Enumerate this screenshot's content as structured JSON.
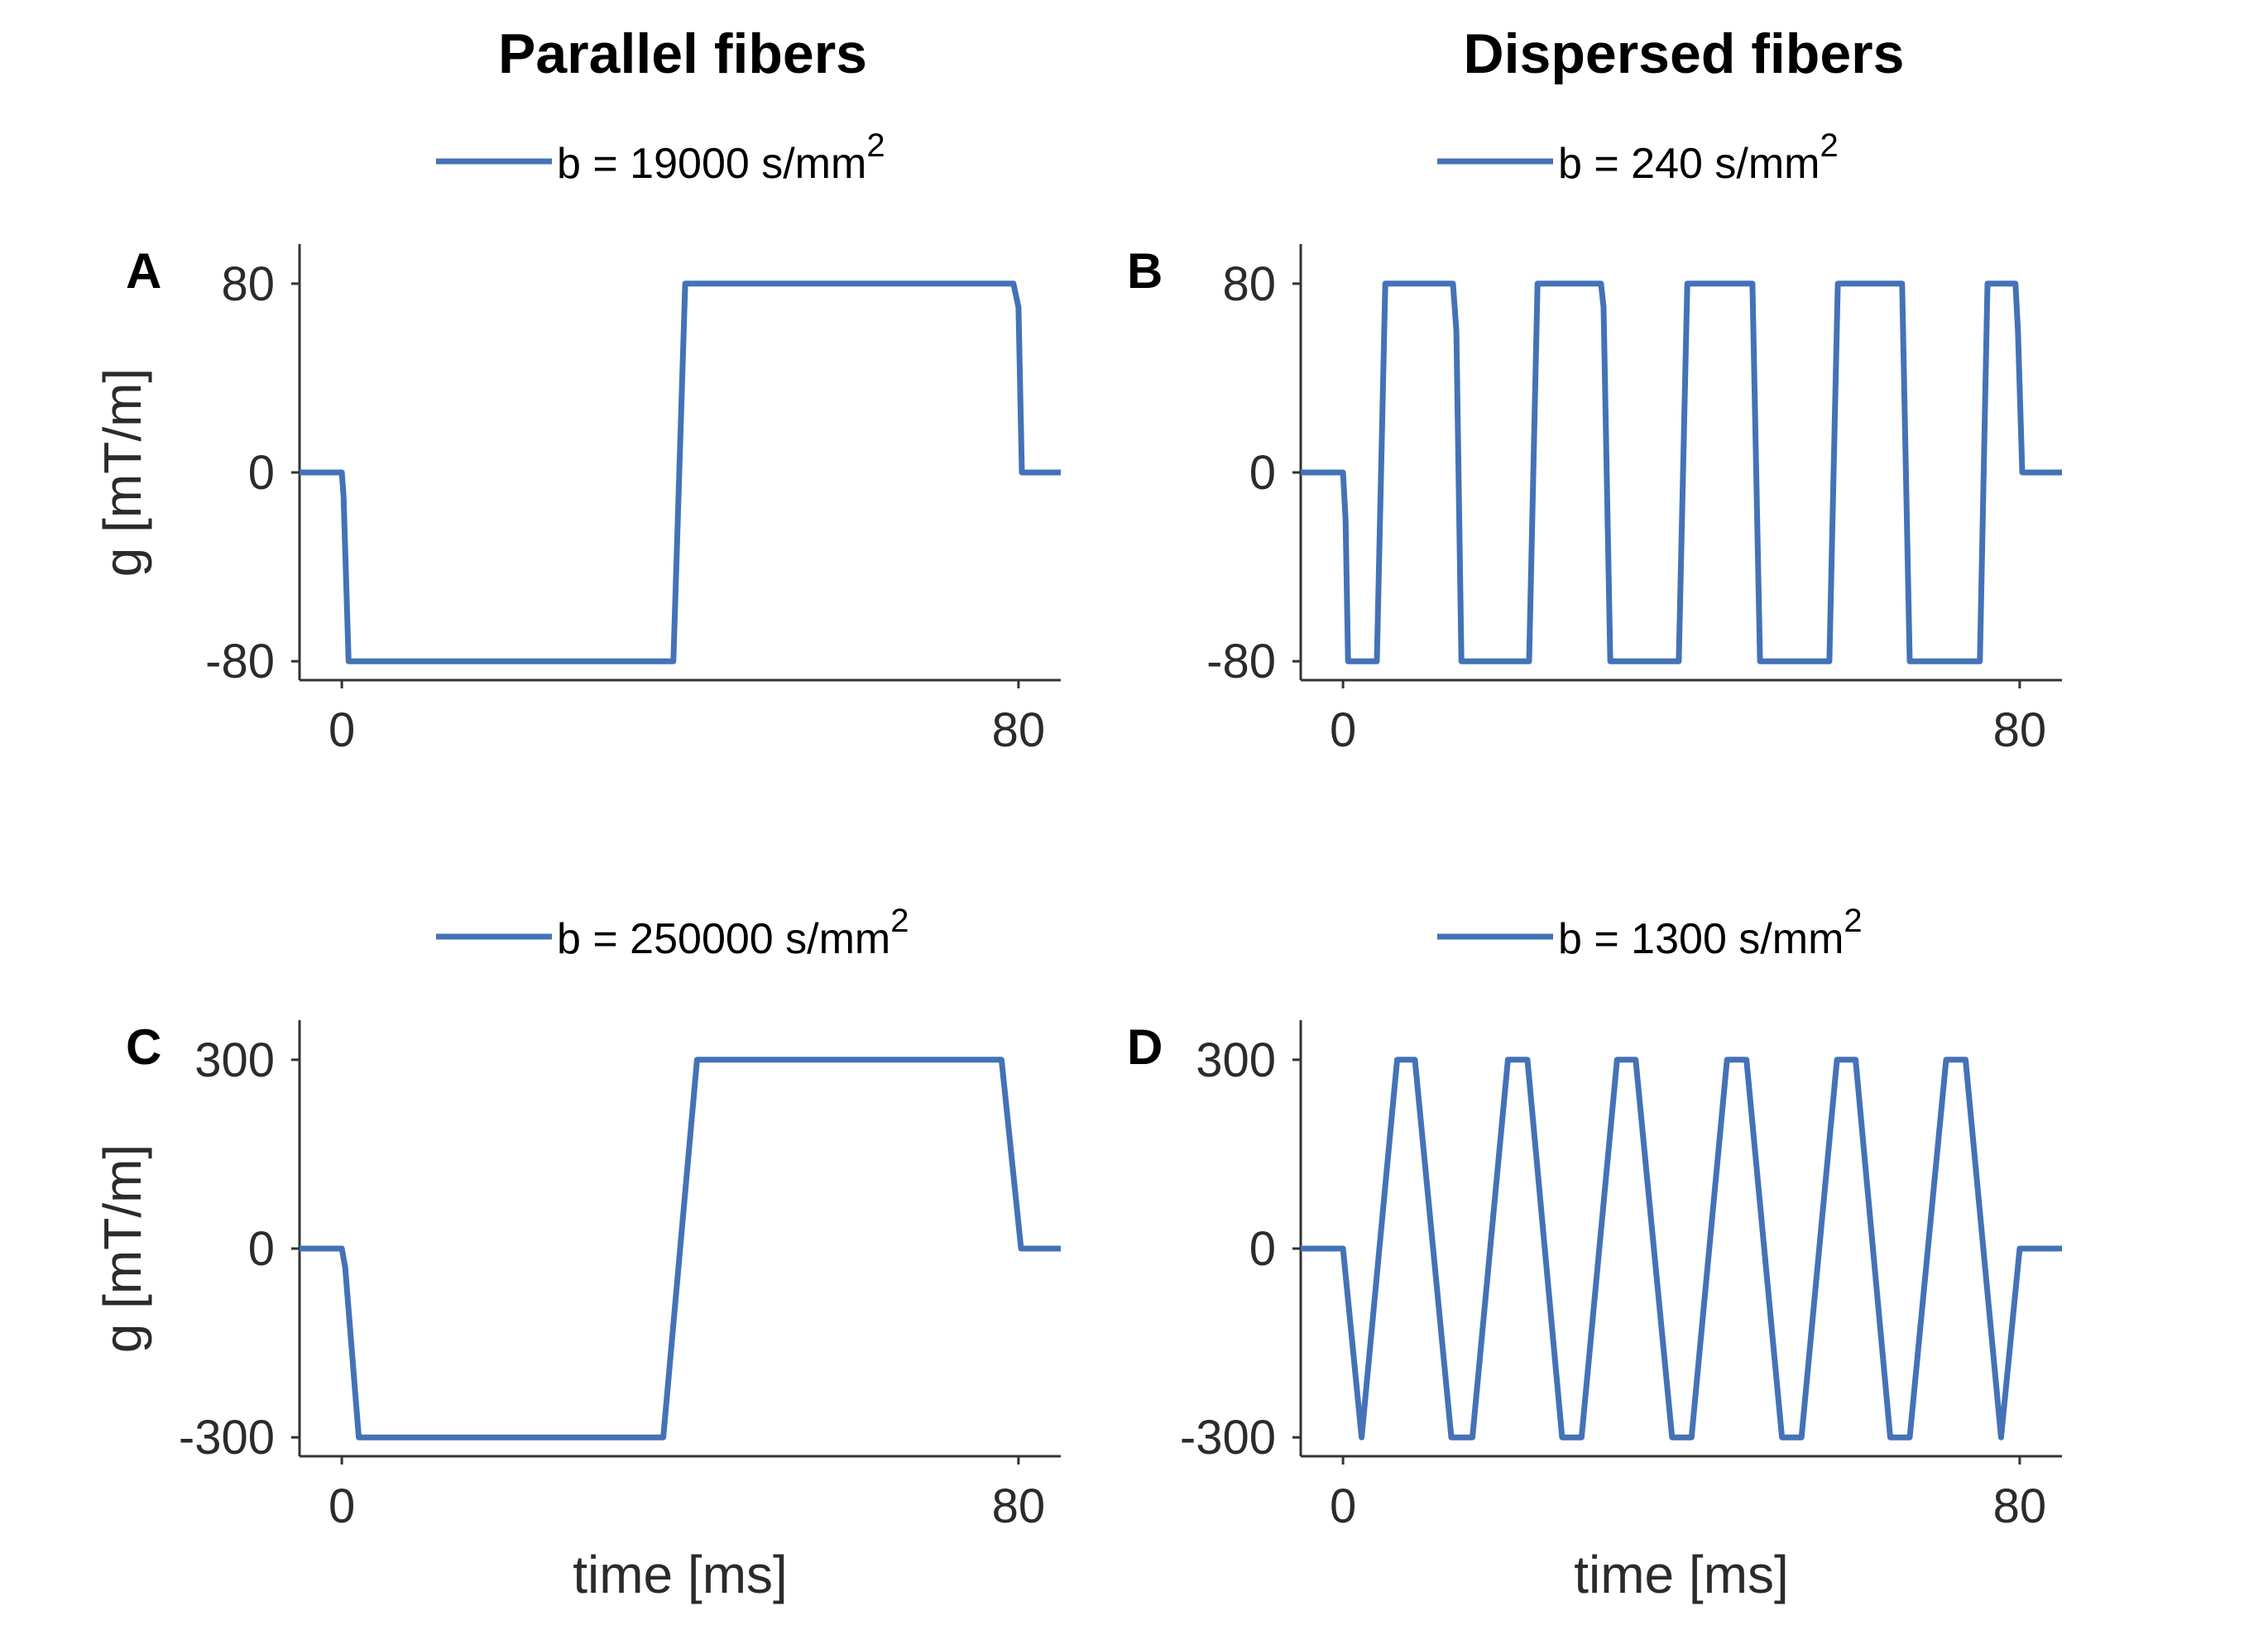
{
  "column_titles": [
    "Parallel fibers",
    "Dispersed fibers"
  ],
  "colors": {
    "trace": "#4472b8",
    "axis": "#333333",
    "text": "#2b2b2b"
  },
  "chart_data": [
    {
      "type": "line",
      "panel": "A",
      "column": "Parallel fibers",
      "legend": "b = 19000 s/mm",
      "legend_sup": "2",
      "xlabel": "",
      "ylabel": "g [mT/m]",
      "xlim": [
        -5,
        85
      ],
      "ylim": [
        -88,
        88
      ],
      "xticks": [
        0,
        80
      ],
      "xticklabels": [
        "0",
        "80"
      ],
      "yticks": [
        -80,
        0,
        80
      ],
      "yticklabels": [
        "-80",
        "0",
        "80"
      ],
      "series": [
        {
          "name": "b = 19000 s/mm2",
          "x": [
            -5,
            0,
            0.2,
            0.8,
            39.2,
            40.6,
            79.4,
            80,
            80.4,
            85
          ],
          "y": [
            0,
            0,
            -10,
            -80,
            -80,
            80,
            80,
            70,
            0,
            0
          ]
        }
      ]
    },
    {
      "type": "line",
      "panel": "B",
      "column": "Dispersed fibers",
      "legend": "b = 240 s/mm",
      "legend_sup": "2",
      "xlabel": "",
      "ylabel": "",
      "xlim": [
        -5,
        85
      ],
      "ylim": [
        -88,
        88
      ],
      "xticks": [
        0,
        80
      ],
      "xticklabels": [
        "0",
        "80"
      ],
      "yticks": [
        -80,
        0,
        80
      ],
      "yticklabels": [
        "-80",
        "0",
        "80"
      ],
      "series": [
        {
          "name": "b = 240 s/mm2",
          "x": [
            -5,
            0,
            0.3,
            0.6,
            4.0,
            5.0,
            13.0,
            13.4,
            14.0,
            22.0,
            23.0,
            30.5,
            30.8,
            31.6,
            39.7,
            40.7,
            48.4,
            49.3,
            57.5,
            58.5,
            66.1,
            67.0,
            75.3,
            76.2,
            79.5,
            79.8,
            80.3,
            85
          ],
          "y": [
            0,
            0,
            -20,
            -80,
            -80,
            80,
            80,
            60,
            -80,
            -80,
            80,
            80,
            70,
            -80,
            -80,
            80,
            80,
            -80,
            -80,
            80,
            80,
            -80,
            -80,
            80,
            80,
            60,
            0,
            0
          ]
        }
      ]
    },
    {
      "type": "line",
      "panel": "C",
      "column": "Parallel fibers",
      "legend": "b = 250000 s/mm",
      "legend_sup": "2",
      "xlabel": "time [ms]",
      "ylabel": "g [mT/m]",
      "xlim": [
        -5,
        85
      ],
      "ylim": [
        -330,
        330
      ],
      "xticks": [
        0,
        80
      ],
      "xticklabels": [
        "0",
        "80"
      ],
      "yticks": [
        -300,
        0,
        300
      ],
      "yticklabels": [
        "-300",
        "0",
        "300"
      ],
      "series": [
        {
          "name": "b = 250000 s/mm2",
          "x": [
            -5,
            0,
            0.4,
            2.0,
            38.0,
            42.0,
            78.0,
            80.3,
            85
          ],
          "y": [
            0,
            0,
            -30,
            -300,
            -300,
            300,
            300,
            0,
            0
          ]
        }
      ]
    },
    {
      "type": "line",
      "panel": "D",
      "column": "Dispersed fibers",
      "legend": "b = 1300 s/mm",
      "legend_sup": "2",
      "xlabel": "time [ms]",
      "ylabel": "",
      "xlim": [
        -5,
        85
      ],
      "ylim": [
        -330,
        330
      ],
      "xticks": [
        0,
        80
      ],
      "xticklabels": [
        "0",
        "80"
      ],
      "yticks": [
        -300,
        0,
        300
      ],
      "yticklabels": [
        "-300",
        "0",
        "300"
      ],
      "series": [
        {
          "name": "b = 1300 s/mm2",
          "x": [
            -5,
            0,
            2.2,
            6.4,
            8.5,
            12.8,
            15.3,
            19.5,
            21.8,
            25.9,
            28.2,
            32.4,
            34.6,
            38.9,
            41.2,
            45.4,
            47.7,
            51.9,
            54.2,
            58.4,
            60.6,
            64.7,
            67.0,
            71.3,
            73.6,
            77.8,
            80.0,
            85
          ],
          "y": [
            0,
            0,
            -300,
            300,
            300,
            -300,
            -300,
            300,
            300,
            -300,
            -300,
            300,
            300,
            -300,
            -300,
            300,
            300,
            -300,
            -300,
            300,
            300,
            -300,
            -300,
            300,
            300,
            -300,
            0,
            0
          ]
        }
      ]
    }
  ]
}
